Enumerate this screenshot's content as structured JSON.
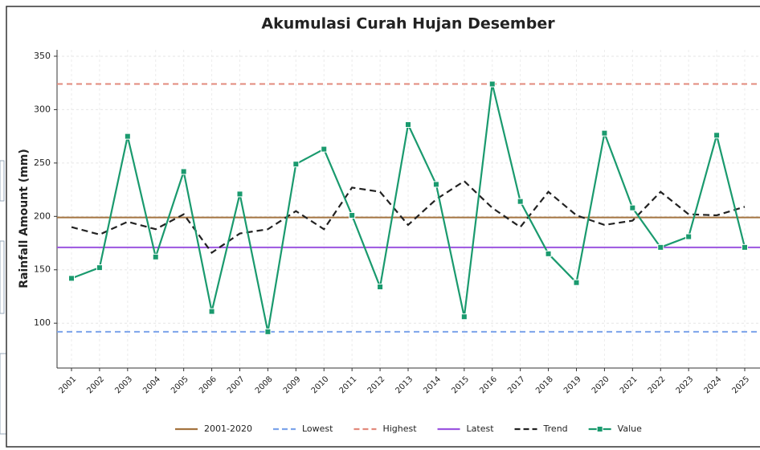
{
  "chart_data": {
    "type": "line",
    "title": "Akumulasi Curah Hujan Desember",
    "y_label": "Rainfall Amount (mm)",
    "categories": [
      "2001",
      "2002",
      "2003",
      "2004",
      "2005",
      "2006",
      "2007",
      "2008",
      "2009",
      "2010",
      "2011",
      "2012",
      "2013",
      "2014",
      "2015",
      "2016",
      "2017",
      "2018",
      "2019",
      "2020",
      "2021",
      "2022",
      "2023",
      "2024",
      "2025"
    ],
    "hlines": [
      {
        "name": "2001-2020",
        "color": "#a47440",
        "value": 199,
        "dashed": false
      },
      {
        "name": "Lowest",
        "color": "#7ca3ea",
        "value": 92,
        "dashed": true
      },
      {
        "name": "Highest",
        "color": "#e28a7c",
        "value": 324,
        "dashed": true
      },
      {
        "name": "Latest",
        "color": "#9b55e0",
        "value": 171,
        "dashed": false
      }
    ],
    "series": [
      {
        "name": "Trend",
        "color": "#222222",
        "dashed": true,
        "markers": false,
        "values": [
          190,
          183,
          195,
          188,
          202,
          166,
          184,
          188,
          205,
          188,
          227,
          223,
          192,
          216,
          233,
          208,
          190,
          223,
          201,
          192,
          196,
          223,
          202,
          201,
          209
        ]
      },
      {
        "name": "Value",
        "color": "#1a9a6e",
        "dashed": false,
        "markers": true,
        "values": [
          142,
          152,
          275,
          162,
          242,
          111,
          221,
          92,
          249,
          263,
          201,
          134,
          286,
          230,
          106,
          324,
          214,
          165,
          138,
          278,
          208,
          171,
          181,
          276,
          171
        ]
      }
    ],
    "ylim": [
      58,
      356
    ],
    "yticks": [
      100,
      150,
      200,
      250,
      300,
      350
    ],
    "grid": true
  }
}
